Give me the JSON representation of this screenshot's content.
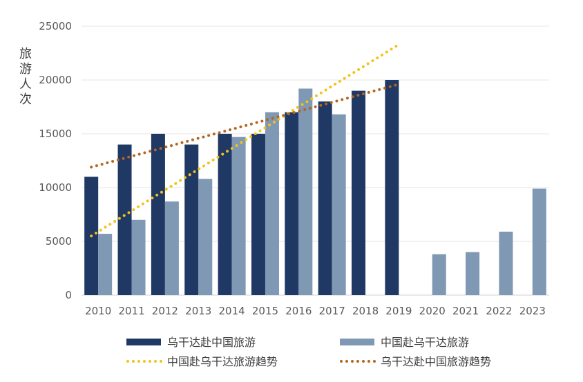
{
  "chart_data": {
    "type": "bar",
    "title": "",
    "xlabel": "",
    "ylabel": "旅游人次",
    "ylim": [
      0,
      25000
    ],
    "yticks": [
      0,
      5000,
      10000,
      15000,
      20000,
      25000
    ],
    "categories": [
      "2010",
      "2011",
      "2012",
      "2013",
      "2014",
      "2015",
      "2016",
      "2017",
      "2018",
      "2019",
      "2020",
      "2021",
      "2022",
      "2023"
    ],
    "series": [
      {
        "name": "乌干达赴中国旅游",
        "color": "#1f3864",
        "values": [
          11000,
          14000,
          15000,
          14000,
          15000,
          15000,
          17000,
          18000,
          19000,
          20000,
          null,
          null,
          null,
          null
        ]
      },
      {
        "name": "中国赴乌干达旅游",
        "color": "#7f98b3",
        "values": [
          5700,
          7000,
          8700,
          10800,
          14700,
          17000,
          19200,
          16800,
          null,
          null,
          3800,
          4000,
          5900,
          9900
        ]
      }
    ],
    "trendlines": [
      {
        "name": "中国赴乌干达旅游趋势",
        "color": "#f2c318",
        "start": {
          "category": "2010",
          "value": 5500
        },
        "end": {
          "category": "2019",
          "value": 23300
        }
      },
      {
        "name": "乌干达赴中国旅游趋势",
        "color": "#b5651d",
        "start": {
          "category": "2010",
          "value": 11900
        },
        "end": {
          "category": "2019",
          "value": 19600
        }
      }
    ],
    "grid": true,
    "legend_position": "bottom"
  }
}
